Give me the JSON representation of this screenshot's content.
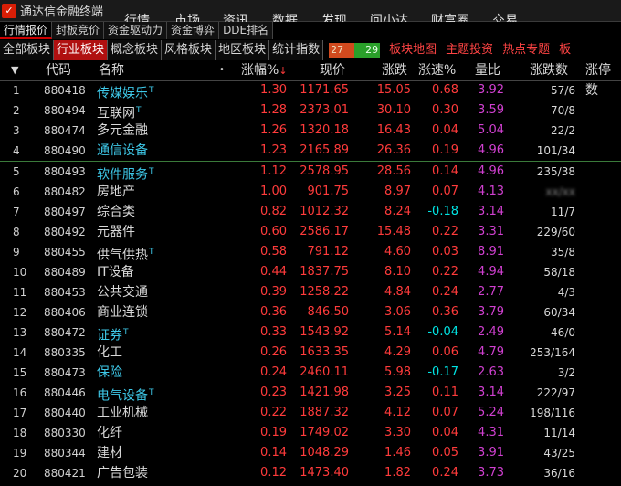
{
  "app": {
    "title": "通达信金融终端",
    "logo_icon": "tdx-logo-icon"
  },
  "menu": [
    "行情",
    "市场",
    "资讯",
    "数据",
    "发现",
    "问小达",
    "财富圈",
    "交易"
  ],
  "sub_tabs": [
    "行情报价",
    "封板竞价",
    "资金驱动力",
    "资金博弈",
    "DDE排名"
  ],
  "category_tabs": [
    "全部板块",
    "行业板块",
    "概念板块",
    "风格板块",
    "地区板块",
    "统计指数"
  ],
  "updown": {
    "up": "27",
    "down": "29",
    "up_color": "#d24a1e",
    "down_color": "#2aa02a"
  },
  "links": [
    "板块地图",
    "主题投资",
    "热点专题",
    "板"
  ],
  "columns": [
    "代码",
    "名称",
    "涨幅%",
    "现价",
    "涨跌",
    "涨速%",
    "量比",
    "涨跌数",
    "涨停数"
  ],
  "rows": [
    {
      "idx": "1",
      "code": "880418",
      "name": "传媒娱乐",
      "t": true,
      "pct": "1.30",
      "price": "1171.65",
      "chg": "15.05",
      "spd": "0.68",
      "ratio": "3.92",
      "ud": "57/6"
    },
    {
      "idx": "2",
      "code": "880494",
      "name": "互联网",
      "t": true,
      "pct": "1.28",
      "price": "2373.01",
      "chg": "30.10",
      "spd": "0.30",
      "ratio": "3.59",
      "ud": "70/8"
    },
    {
      "idx": "3",
      "code": "880474",
      "name": "多元金融",
      "t": false,
      "pct": "1.26",
      "price": "1320.18",
      "chg": "16.43",
      "spd": "0.04",
      "ratio": "5.04",
      "ud": "22/2"
    },
    {
      "idx": "4",
      "code": "880490",
      "name": "通信设备",
      "t": false,
      "pct": "1.23",
      "price": "2165.89",
      "chg": "26.36",
      "spd": "0.19",
      "ratio": "4.96",
      "ud": "101/34"
    },
    {
      "idx": "5",
      "code": "880493",
      "name": "软件服务",
      "t": true,
      "pct": "1.12",
      "price": "2578.95",
      "chg": "28.56",
      "spd": "0.14",
      "ratio": "4.96",
      "ud": "235/38"
    },
    {
      "idx": "6",
      "code": "880482",
      "name": "房地产",
      "t": false,
      "pct": "1.00",
      "price": "901.75",
      "chg": "8.97",
      "spd": "0.07",
      "ratio": "4.13",
      "ud": "xx/xx"
    },
    {
      "idx": "7",
      "code": "880497",
      "name": "综合类",
      "t": false,
      "pct": "0.82",
      "price": "1012.32",
      "chg": "8.24",
      "spd": "-0.18",
      "ratio": "3.14",
      "ud": "11/7"
    },
    {
      "idx": "8",
      "code": "880492",
      "name": "元器件",
      "t": false,
      "pct": "0.60",
      "price": "2586.17",
      "chg": "15.48",
      "spd": "0.22",
      "ratio": "3.31",
      "ud": "229/60"
    },
    {
      "idx": "9",
      "code": "880455",
      "name": "供气供热",
      "t": true,
      "pct": "0.58",
      "price": "791.12",
      "chg": "4.60",
      "spd": "0.03",
      "ratio": "8.91",
      "ud": "35/8"
    },
    {
      "idx": "10",
      "code": "880489",
      "name": "IT设备",
      "t": false,
      "pct": "0.44",
      "price": "1837.75",
      "chg": "8.10",
      "spd": "0.22",
      "ratio": "4.94",
      "ud": "58/18"
    },
    {
      "idx": "11",
      "code": "880453",
      "name": "公共交通",
      "t": false,
      "pct": "0.39",
      "price": "1258.22",
      "chg": "4.84",
      "spd": "0.24",
      "ratio": "2.77",
      "ud": "4/3"
    },
    {
      "idx": "12",
      "code": "880406",
      "name": "商业连锁",
      "t": false,
      "pct": "0.36",
      "price": "846.50",
      "chg": "3.06",
      "spd": "0.36",
      "ratio": "3.79",
      "ud": "60/34"
    },
    {
      "idx": "13",
      "code": "880472",
      "name": "证券",
      "t": true,
      "pct": "0.33",
      "price": "1543.92",
      "chg": "5.14",
      "spd": "-0.04",
      "ratio": "2.49",
      "ud": "46/0"
    },
    {
      "idx": "14",
      "code": "880335",
      "name": "化工",
      "t": false,
      "pct": "0.26",
      "price": "1633.35",
      "chg": "4.29",
      "spd": "0.06",
      "ratio": "4.79",
      "ud": "253/164"
    },
    {
      "idx": "15",
      "code": "880473",
      "name": "保险",
      "t": false,
      "pct": "0.24",
      "price": "2460.11",
      "chg": "5.98",
      "spd": "-0.17",
      "ratio": "2.63",
      "ud": "3/2"
    },
    {
      "idx": "16",
      "code": "880446",
      "name": "电气设备",
      "t": true,
      "pct": "0.23",
      "price": "1421.98",
      "chg": "3.25",
      "spd": "0.11",
      "ratio": "3.14",
      "ud": "222/97"
    },
    {
      "idx": "17",
      "code": "880440",
      "name": "工业机械",
      "t": false,
      "pct": "0.22",
      "price": "1887.32",
      "chg": "4.12",
      "spd": "0.07",
      "ratio": "5.24",
      "ud": "198/116"
    },
    {
      "idx": "18",
      "code": "880330",
      "name": "化纤",
      "t": false,
      "pct": "0.19",
      "price": "1749.02",
      "chg": "3.30",
      "spd": "0.04",
      "ratio": "4.31",
      "ud": "11/14"
    },
    {
      "idx": "19",
      "code": "880344",
      "name": "建材",
      "t": false,
      "pct": "0.14",
      "price": "1048.29",
      "chg": "1.46",
      "spd": "0.05",
      "ratio": "3.91",
      "ud": "43/25"
    },
    {
      "idx": "20",
      "code": "880421",
      "name": "广告包装",
      "t": false,
      "pct": "0.12",
      "price": "1473.40",
      "chg": "1.82",
      "spd": "0.24",
      "ratio": "3.73",
      "ud": "36/16"
    }
  ]
}
